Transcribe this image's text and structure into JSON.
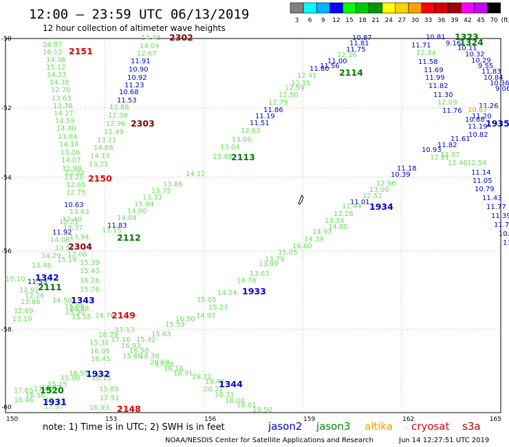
{
  "title": "12:00  – 23:59 UTC 06/13/2019",
  "subtitle": "12 hour collection of altimeter wave heights",
  "scale": {
    "labels": [
      "3",
      "6",
      "9",
      "12",
      "15",
      "18",
      "21",
      "24",
      "27",
      "30",
      "33",
      "36",
      "39",
      "42",
      "45",
      "70"
    ],
    "unit": "(ft)",
    "colors": [
      "#7f7f7f",
      "#00ffff",
      "#00b4ff",
      "#0000ff",
      "#00ff00",
      "#00c800",
      "#009600",
      "#ffff00",
      "#ffd200",
      "#ffa000",
      "#ff0000",
      "#d20000",
      "#a00000",
      "#ff00ff",
      "#c800ff",
      "#000000"
    ]
  },
  "axes": {
    "x_ticks": [
      "150",
      "153",
      "156",
      "159",
      "162",
      "165"
    ],
    "y_ticks": [
      "-50",
      "-52",
      "-54",
      "-56",
      "-58",
      "-60"
    ]
  },
  "colors": {
    "g_light": "#66dd55",
    "g_dark": "#007700",
    "blue": "#0000cc",
    "red": "#dd0000",
    "maroon": "#880000",
    "orange": "#ff9900"
  },
  "labels": [
    {
      "t": "14.48",
      "c": "g_light"
    },
    {
      "t": "14.04",
      "c": "g_light"
    },
    {
      "t": "12.67",
      "c": "g_light"
    },
    {
      "t": "11.91",
      "c": "blue"
    },
    {
      "t": "10.90",
      "c": "blue"
    },
    {
      "t": "10.92",
      "c": "blue"
    },
    {
      "t": "11.23",
      "c": "blue"
    },
    {
      "t": "10.68",
      "c": "blue"
    },
    {
      "t": "11.53",
      "c": "blue"
    },
    {
      "t": "12.88",
      "c": "g_light"
    },
    {
      "t": "12.39",
      "c": "g_light"
    },
    {
      "t": "12.96",
      "c": "g_light"
    },
    {
      "t": "12.49",
      "c": "g_light"
    },
    {
      "t": "13.21",
      "c": "g_light"
    },
    {
      "t": "14.88",
      "c": "g_light"
    },
    {
      "t": "14.13",
      "c": "g_light"
    },
    {
      "t": "13.21",
      "c": "g_light"
    },
    {
      "t": "16.87",
      "c": "g_light"
    },
    {
      "t": "16.12",
      "c": "g_light"
    },
    {
      "t": "14.36",
      "c": "g_light"
    },
    {
      "t": "15.12",
      "c": "g_light"
    },
    {
      "t": "14.23",
      "c": "g_light"
    },
    {
      "t": "14.38",
      "c": "g_light"
    },
    {
      "t": "12.70",
      "c": "g_light"
    },
    {
      "t": "13.63",
      "c": "g_light"
    },
    {
      "t": "13.38",
      "c": "g_light"
    },
    {
      "t": "14.27",
      "c": "g_light"
    },
    {
      "t": "14.59",
      "c": "g_light"
    },
    {
      "t": "14.40",
      "c": "g_light"
    },
    {
      "t": "13.84",
      "c": "g_light"
    },
    {
      "t": "14.14",
      "c": "g_light"
    },
    {
      "t": "13.26",
      "c": "g_light"
    },
    {
      "t": "14.07",
      "c": "g_light"
    },
    {
      "t": "12.99",
      "c": "g_light"
    },
    {
      "t": "13.33",
      "c": "g_light"
    },
    {
      "t": "13.25",
      "c": "g_light"
    },
    {
      "t": "12.65",
      "c": "g_light"
    },
    {
      "t": "12.75",
      "c": "g_light"
    },
    {
      "t": "10.63",
      "c": "blue"
    },
    {
      "t": "13.63",
      "c": "g_light"
    },
    {
      "t": "12.40",
      "c": "g_light"
    },
    {
      "t": "12.21",
      "c": "g_light"
    },
    {
      "t": "14.37",
      "c": "g_light"
    },
    {
      "t": "11.92",
      "c": "blue"
    },
    {
      "t": "13.94",
      "c": "g_light"
    },
    {
      "t": "14.08",
      "c": "g_light"
    },
    {
      "t": "13.52",
      "c": "g_light"
    },
    {
      "t": "12.06",
      "c": "g_light"
    },
    {
      "t": "14.29",
      "c": "g_light"
    },
    {
      "t": "15.19",
      "c": "g_light"
    },
    {
      "t": "13.48",
      "c": "g_light"
    },
    {
      "t": "15.39",
      "c": "g_light"
    },
    {
      "t": "15.43",
      "c": "g_light"
    },
    {
      "t": "16.26",
      "c": "g_light"
    },
    {
      "t": "15.76",
      "c": "g_light"
    },
    {
      "t": "15.10",
      "c": "g_light"
    },
    {
      "t": "11.53",
      "c": "blue"
    },
    {
      "t": "12.91",
      "c": "g_light"
    },
    {
      "t": "12.26",
      "c": "g_light"
    },
    {
      "t": "13.86",
      "c": "g_light"
    },
    {
      "t": "14.50",
      "c": "g_light"
    },
    {
      "t": "12.69",
      "c": "g_light"
    },
    {
      "t": "13.19",
      "c": "g_light"
    },
    {
      "t": "15.99",
      "c": "g_light"
    },
    {
      "t": "16.48",
      "c": "g_light"
    },
    {
      "t": "15.90",
      "c": "g_light"
    },
    {
      "t": "15.55",
      "c": "g_light"
    },
    {
      "t": "14.76",
      "c": "g_light"
    },
    {
      "t": "11.83",
      "c": "blue"
    },
    {
      "t": "13.15",
      "c": "g_light"
    },
    {
      "t": "14.04",
      "c": "g_light"
    },
    {
      "t": "14.00",
      "c": "g_light"
    },
    {
      "t": "15.94",
      "c": "g_light"
    },
    {
      "t": "13.33",
      "c": "g_light"
    },
    {
      "t": "13.75",
      "c": "g_light"
    },
    {
      "t": "13.86",
      "c": "g_light"
    },
    {
      "t": "14.12",
      "c": "g_light"
    },
    {
      "t": "13.48",
      "c": "g_light"
    },
    {
      "t": "13.04",
      "c": "g_light"
    },
    {
      "t": "13.06",
      "c": "g_light"
    },
    {
      "t": "12.63",
      "c": "g_light"
    },
    {
      "t": "11.51",
      "c": "blue"
    },
    {
      "t": "11.19",
      "c": "blue"
    },
    {
      "t": "11.86",
      "c": "blue"
    },
    {
      "t": "12.79",
      "c": "g_light"
    },
    {
      "t": "12.50",
      "c": "g_light"
    },
    {
      "t": "12.59",
      "c": "g_light"
    },
    {
      "t": "12.15",
      "c": "g_light"
    },
    {
      "t": "12.41",
      "c": "g_light"
    },
    {
      "t": "11.80",
      "c": "blue"
    },
    {
      "t": "11.56",
      "c": "blue"
    },
    {
      "t": "11.00",
      "c": "blue"
    },
    {
      "t": "12.16",
      "c": "g_light"
    },
    {
      "t": "11.75",
      "c": "blue"
    },
    {
      "t": "11.81",
      "c": "blue"
    },
    {
      "t": "10.87",
      "c": "blue"
    },
    {
      "t": "10.81",
      "c": "blue"
    },
    {
      "t": "9.16",
      "c": "blue"
    },
    {
      "t": "11.71",
      "c": "blue"
    },
    {
      "t": "10.11",
      "c": "blue"
    },
    {
      "t": "12.34",
      "c": "g_light"
    },
    {
      "t": "10.32",
      "c": "blue"
    },
    {
      "t": "11.58",
      "c": "blue"
    },
    {
      "t": "10.29",
      "c": "blue"
    },
    {
      "t": "9.55",
      "c": "blue"
    },
    {
      "t": "11.69",
      "c": "blue"
    },
    {
      "t": "11.83",
      "c": "blue"
    },
    {
      "t": "11.99",
      "c": "blue"
    },
    {
      "t": "10.84",
      "c": "blue"
    },
    {
      "t": "10.36",
      "c": "blue"
    },
    {
      "t": "11.82",
      "c": "blue"
    },
    {
      "t": "9.06",
      "c": "blue"
    },
    {
      "t": "11.30",
      "c": "blue"
    },
    {
      "t": "12.09",
      "c": "g_light"
    },
    {
      "t": "11.26",
      "c": "blue"
    },
    {
      "t": "11.76",
      "c": "blue"
    },
    {
      "t": "10.87",
      "c": "orange"
    },
    {
      "t": "10.68",
      "c": "blue"
    },
    {
      "t": "11.20",
      "c": "blue"
    },
    {
      "t": "11.19",
      "c": "blue"
    },
    {
      "t": "10.82",
      "c": "blue"
    },
    {
      "t": "11.61",
      "c": "blue"
    },
    {
      "t": "11.82",
      "c": "blue"
    },
    {
      "t": "12.07",
      "c": "g_light"
    },
    {
      "t": "10.93",
      "c": "blue"
    },
    {
      "t": "12.21",
      "c": "g_light"
    },
    {
      "t": "12.54",
      "c": "g_light"
    },
    {
      "t": "12.46",
      "c": "g_light"
    },
    {
      "t": "11.18",
      "c": "blue"
    },
    {
      "t": "10.39",
      "c": "blue"
    },
    {
      "t": "11.14",
      "c": "blue"
    },
    {
      "t": "11.05",
      "c": "blue"
    },
    {
      "t": "10.79",
      "c": "blue"
    },
    {
      "t": "11.43",
      "c": "blue"
    },
    {
      "t": "11.77",
      "c": "blue"
    },
    {
      "t": "11.39",
      "c": "blue"
    },
    {
      "t": "11.7",
      "c": "blue"
    },
    {
      "t": "10.",
      "c": "blue"
    },
    {
      "t": "11",
      "c": "blue"
    },
    {
      "t": "12.96",
      "c": "g_light"
    },
    {
      "t": "13.00",
      "c": "g_light"
    },
    {
      "t": "12.52",
      "c": "g_light"
    },
    {
      "t": "11.01",
      "c": "blue"
    },
    {
      "t": "12.44",
      "c": "g_light"
    },
    {
      "t": "13.28",
      "c": "g_light"
    },
    {
      "t": "13.34",
      "c": "g_light"
    },
    {
      "t": "14.85",
      "c": "g_light"
    },
    {
      "t": "14.93",
      "c": "g_light"
    },
    {
      "t": "14.39",
      "c": "g_light"
    },
    {
      "t": "16.60",
      "c": "g_light"
    },
    {
      "t": "15.05",
      "c": "g_light"
    },
    {
      "t": "13.79",
      "c": "g_light"
    },
    {
      "t": "13.99",
      "c": "g_light"
    },
    {
      "t": "13.63",
      "c": "g_light"
    },
    {
      "t": "14.78",
      "c": "g_light"
    },
    {
      "t": "14.24",
      "c": "g_light"
    },
    {
      "t": "15.05",
      "c": "g_light"
    },
    {
      "t": "15.23",
      "c": "g_light"
    },
    {
      "t": "14.97",
      "c": "g_light"
    },
    {
      "t": "16.50",
      "c": "g_light"
    },
    {
      "t": "15.53",
      "c": "g_light"
    },
    {
      "t": "15.63",
      "c": "g_light"
    },
    {
      "t": "15.42",
      "c": "g_light"
    },
    {
      "t": "17.13",
      "c": "g_light"
    },
    {
      "t": "16.79",
      "c": "g_light"
    },
    {
      "t": "15.31",
      "c": "g_light"
    },
    {
      "t": "17.16",
      "c": "g_light"
    },
    {
      "t": "16.93",
      "c": "g_light"
    },
    {
      "t": "16.58",
      "c": "g_light"
    },
    {
      "t": "16.05",
      "c": "g_light"
    },
    {
      "t": "15.66",
      "c": "g_light"
    },
    {
      "t": "18.38",
      "c": "g_light"
    },
    {
      "t": "16.45",
      "c": "g_light"
    },
    {
      "t": "20.60",
      "c": "g_light"
    },
    {
      "t": "17.16",
      "c": "g_light"
    },
    {
      "t": "16.16",
      "c": "g_light"
    },
    {
      "t": "18.91",
      "c": "g_light"
    },
    {
      "t": "16.55",
      "c": "g_light"
    },
    {
      "t": "19.72",
      "c": "g_light"
    },
    {
      "t": "18.15",
      "c": "g_light"
    },
    {
      "t": "19.40",
      "c": "g_light"
    },
    {
      "t": "20.22",
      "c": "g_light"
    },
    {
      "t": "15.89",
      "c": "g_light"
    },
    {
      "t": "18.31",
      "c": "g_light"
    },
    {
      "t": "17.51",
      "c": "g_light"
    },
    {
      "t": "18.00",
      "c": "g_light"
    },
    {
      "t": "18.01",
      "c": "g_light"
    },
    {
      "t": "16.93",
      "c": "g_light"
    },
    {
      "t": "19.50",
      "c": "g_light"
    },
    {
      "t": "15.00",
      "c": "g_light"
    },
    {
      "t": "15.15",
      "c": "g_light"
    },
    {
      "t": "17.65",
      "c": "g_light"
    },
    {
      "t": "16.56",
      "c": "g_light"
    },
    {
      "t": "18.46",
      "c": "g_light"
    },
    {
      "t": "18.13",
      "c": "g_light"
    },
    {
      "t": "17.97",
      "c": "g_light"
    },
    {
      "t": "16.97",
      "c": "g_light"
    },
    {
      "t": "17.66",
      "c": "g_light"
    },
    {
      "t": "17.98",
      "c": "g_light"
    }
  ],
  "passes": [
    {
      "t": "2302",
      "c": "maroon"
    },
    {
      "t": "2151",
      "c": "red"
    },
    {
      "t": "2303",
      "c": "maroon"
    },
    {
      "t": "2150",
      "c": "red"
    },
    {
      "t": "2304",
      "c": "maroon"
    },
    {
      "t": "2112",
      "c": "g_dark"
    },
    {
      "t": "1342",
      "c": "blue"
    },
    {
      "t": "2111",
      "c": "g_dark"
    },
    {
      "t": "1343",
      "c": "blue"
    },
    {
      "t": "2149",
      "c": "red"
    },
    {
      "t": "2113",
      "c": "g_dark"
    },
    {
      "t": "2114",
      "c": "g_dark"
    },
    {
      "t": "1323",
      "c": "g_dark"
    },
    {
      "t": "1324",
      "c": "g_dark"
    },
    {
      "t": "1935",
      "c": "blue"
    },
    {
      "t": "1934",
      "c": "blue"
    },
    {
      "t": "1933",
      "c": "blue"
    },
    {
      "t": "1932",
      "c": "blue"
    },
    {
      "t": "1344",
      "c": "blue"
    },
    {
      "t": "1520",
      "c": "g_dark"
    },
    {
      "t": "1931",
      "c": "blue"
    },
    {
      "t": "2148",
      "c": "red"
    }
  ],
  "legend": {
    "note": "note: 1) Time is in UTC; 2) SWH is in feet",
    "satellites": [
      {
        "name": "jason2",
        "color": "#0000cc"
      },
      {
        "name": "jason3",
        "color": "#008800"
      },
      {
        "name": "altika",
        "color": "#ff9900"
      },
      {
        "name": "cryosat",
        "color": "#dd0000"
      },
      {
        "name": "s3a",
        "color": "#aa0000"
      }
    ]
  },
  "credit": "NOAA/NESDIS Center for Satellite Applications and Research",
  "timestamp": "Jun 14 12:27:51 UTC 2019"
}
